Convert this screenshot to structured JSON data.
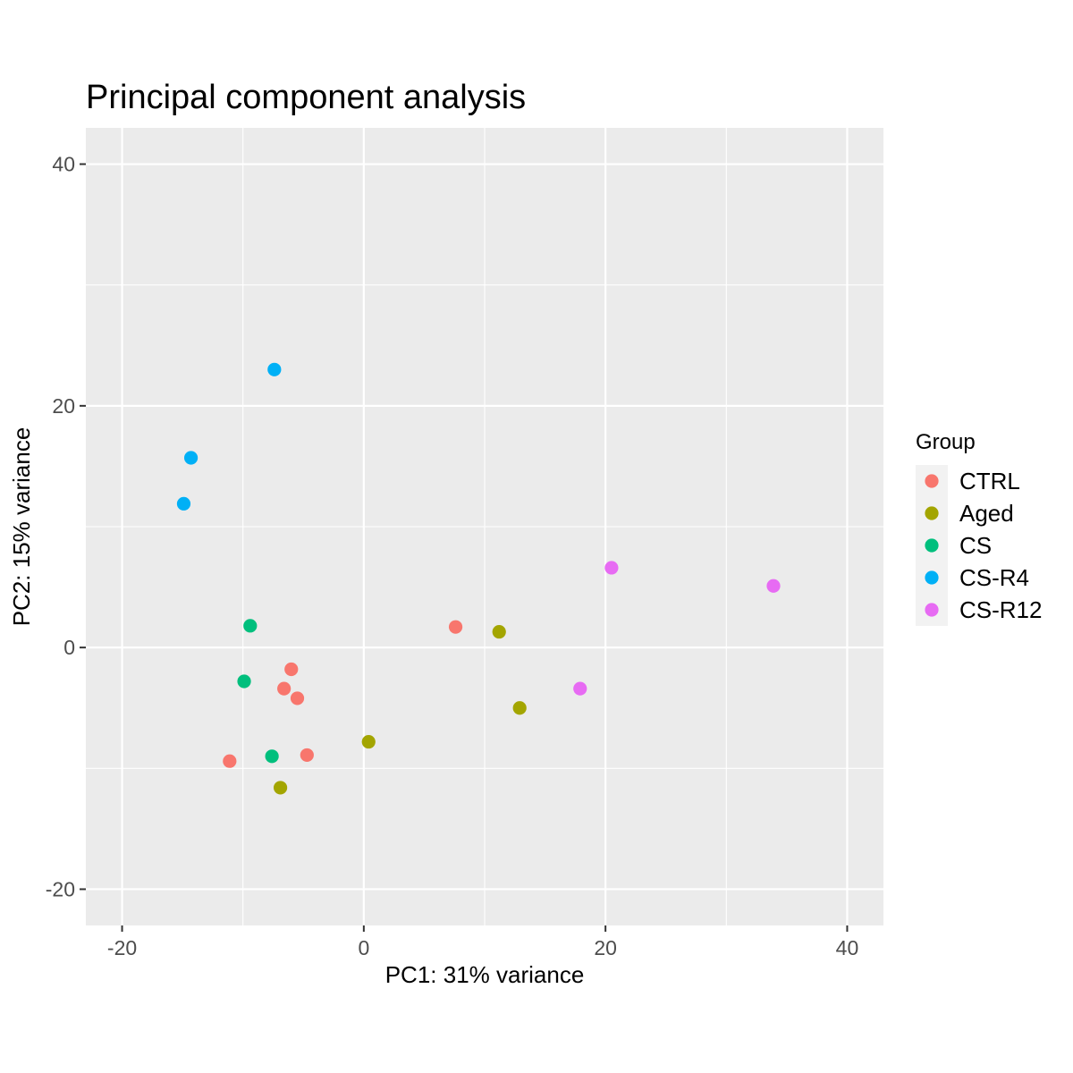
{
  "chart_data": {
    "type": "scatter",
    "title": "Principal component analysis",
    "xlabel": "PC1: 31% variance",
    "ylabel": "PC2: 15% variance",
    "xlim": [
      -23,
      43
    ],
    "ylim": [
      -23,
      43
    ],
    "x_ticks": [
      -20,
      0,
      20,
      40
    ],
    "y_ticks": [
      -20,
      0,
      20,
      40
    ],
    "x_tick_labels": [
      "-20",
      "0",
      "20",
      "40"
    ],
    "y_tick_labels": [
      "-20",
      "0",
      "20",
      "40"
    ],
    "grid": true,
    "legend": {
      "title": "Group",
      "position": "right"
    },
    "series": [
      {
        "name": "CTRL",
        "color": "#F8766D",
        "points": [
          [
            7.6,
            1.7
          ],
          [
            -6.0,
            -1.8
          ],
          [
            -6.6,
            -3.4
          ],
          [
            -5.5,
            -4.2
          ],
          [
            -4.7,
            -8.9
          ],
          [
            -11.1,
            -9.4
          ]
        ]
      },
      {
        "name": "Aged",
        "color": "#A3A500",
        "points": [
          [
            11.2,
            1.3
          ],
          [
            12.9,
            -5.0
          ],
          [
            0.4,
            -7.8
          ],
          [
            -6.9,
            -11.6
          ]
        ]
      },
      {
        "name": "CS",
        "color": "#00BF7D",
        "points": [
          [
            -9.4,
            1.8
          ],
          [
            -9.9,
            -2.8
          ],
          [
            -7.6,
            -9.0
          ]
        ]
      },
      {
        "name": "CS-R4",
        "color": "#00B0F6",
        "points": [
          [
            -7.4,
            23.0
          ],
          [
            -14.3,
            15.7
          ],
          [
            -14.9,
            11.9
          ]
        ]
      },
      {
        "name": "CS-R12",
        "color": "#E76BF3",
        "points": [
          [
            20.5,
            6.6
          ],
          [
            33.9,
            5.1
          ],
          [
            17.9,
            -3.4
          ]
        ]
      }
    ]
  }
}
